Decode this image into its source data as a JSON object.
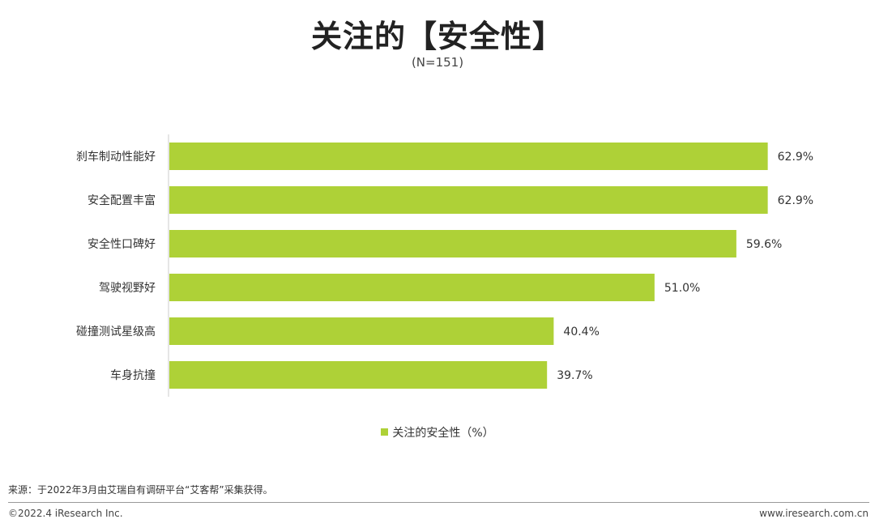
{
  "chart_data": {
    "type": "bar",
    "orientation": "horizontal",
    "title": "关注的【安全性】",
    "subtitle": "(N=151)",
    "categories": [
      "刹车制动性能好",
      "安全配置丰富",
      "安全性口碑好",
      "驾驶视野好",
      "碰撞测试星级高",
      "车身抗撞"
    ],
    "series": [
      {
        "name": "关注的安全性（%）",
        "values": [
          62.9,
          62.9,
          59.6,
          51.0,
          40.4,
          39.7
        ],
        "labels": [
          "62.9%",
          "62.9%",
          "59.6%",
          "51.0%",
          "40.4%",
          "39.7%"
        ],
        "color": "#aed137"
      }
    ],
    "xlim": [
      0,
      70
    ],
    "grid": false,
    "legend_position": "bottom"
  },
  "footer": {
    "source": "来源：于2022年3月由艾瑞自有调研平台“艾客帮”采集获得。",
    "copyright": "©2022.4 iResearch Inc.",
    "website": "www.iresearch.com.cn"
  }
}
